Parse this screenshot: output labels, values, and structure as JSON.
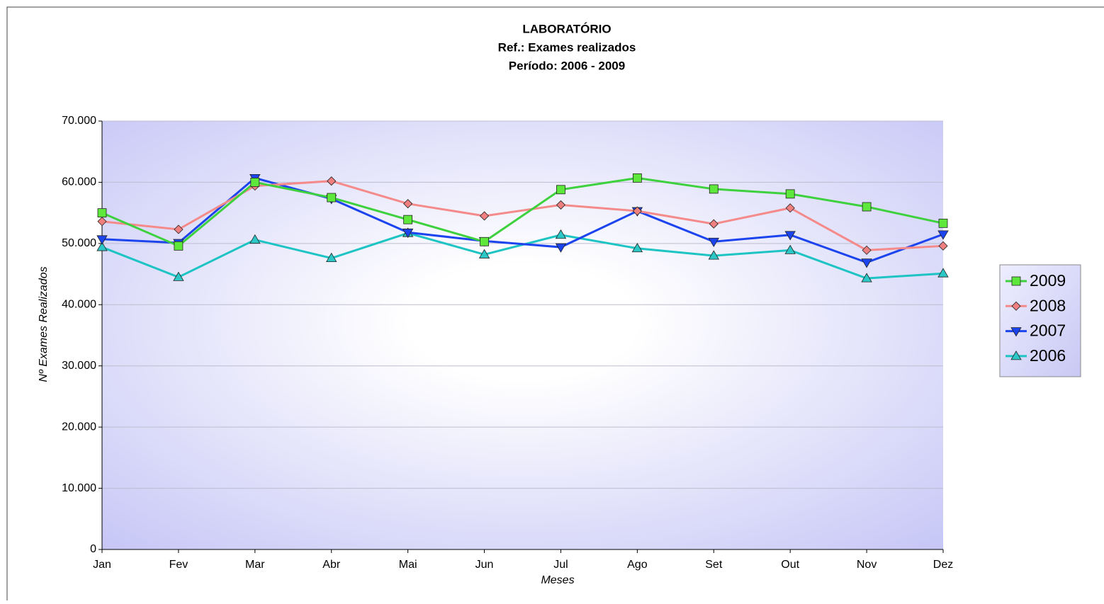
{
  "chart_data": {
    "type": "line",
    "title": [
      "LABORATÓRIO",
      "Ref.: Exames realizados",
      "Período: 2006 - 2009"
    ],
    "x_label": "Meses",
    "y_label": "Nº Exames Realizados",
    "categories": [
      "Jan",
      "Fev",
      "Mar",
      "Abr",
      "Mai",
      "Jun",
      "Jul",
      "Ago",
      "Set",
      "Out",
      "Nov",
      "Dez"
    ],
    "series": [
      {
        "name": "2009",
        "color": "#3ed13e",
        "marker_color": "#5ee83c",
        "marker": "square",
        "values": [
          55000,
          49600,
          60000,
          57500,
          53900,
          50300,
          58800,
          60700,
          58900,
          58100,
          56000,
          53300
        ]
      },
      {
        "name": "2008",
        "color": "#f58a8a",
        "marker_color": "#f08080",
        "marker": "diamond",
        "values": [
          53600,
          52300,
          59400,
          60200,
          56500,
          54500,
          56300,
          55300,
          53200,
          55800,
          48900,
          49600
        ]
      },
      {
        "name": "2007",
        "color": "#1c44ee",
        "marker_color": "#1c44ee",
        "marker": "triangle-down",
        "values": [
          50700,
          50100,
          60700,
          57300,
          51800,
          50400,
          49400,
          55300,
          50300,
          51400,
          46900,
          51500
        ]
      },
      {
        "name": "2006",
        "color": "#1ec4c4",
        "marker_color": "#2cc8c8",
        "marker": "triangle-up",
        "values": [
          49400,
          44500,
          50600,
          47600,
          51700,
          48200,
          51400,
          49200,
          48000,
          48900,
          44300,
          45100
        ]
      }
    ],
    "ylim": [
      0,
      70000
    ],
    "yticks": [
      0,
      {
        "value": 10000,
        "label": "10.000"
      },
      {
        "value": 20000,
        "label": "20.000"
      },
      {
        "value": 30000,
        "label": "30.000"
      },
      {
        "value": 40000,
        "label": "40.000"
      },
      {
        "value": 50000,
        "label": "50.000"
      },
      {
        "value": 60000,
        "label": "60.000"
      },
      {
        "value": 70000,
        "label": "70.000"
      }
    ],
    "grid": true,
    "legend": "right"
  }
}
